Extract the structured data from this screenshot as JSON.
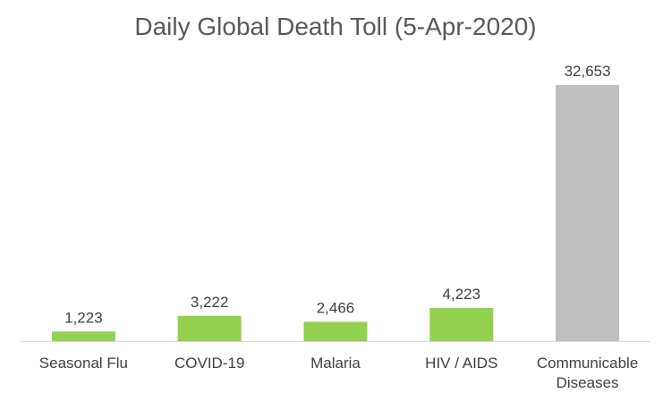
{
  "chart_data": {
    "type": "bar",
    "title": "Daily Global Death Toll (5-Apr-2020)",
    "categories": [
      "Seasonal Flu",
      "COVID-19",
      "Malaria",
      "HIV / AIDS",
      "Communicable Diseases"
    ],
    "category_lines": [
      [
        "Seasonal Flu"
      ],
      [
        "COVID-19"
      ],
      [
        "Malaria"
      ],
      [
        "HIV / AIDS"
      ],
      [
        "Communicable",
        "Diseases"
      ]
    ],
    "values": [
      1223,
      3222,
      2466,
      4223,
      32653
    ],
    "value_labels": [
      "1,223",
      "3,222",
      "2,466",
      "4,223",
      "32,653"
    ],
    "bar_colors": [
      "#92D050",
      "#92D050",
      "#92D050",
      "#92D050",
      "#BFBFBF"
    ],
    "ylim": [
      0,
      32653
    ],
    "grid": false,
    "legend": "none",
    "xlabel": "",
    "ylabel": ""
  }
}
